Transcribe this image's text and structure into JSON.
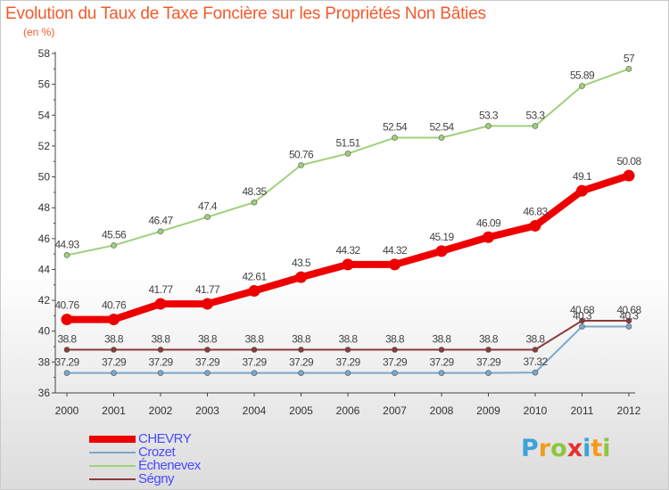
{
  "header": {
    "title": "Evolution du Taux de Taxe Foncière sur les Propriétés Non Bâties",
    "subtitle": "(en %)"
  },
  "logo": {
    "text": "Proxiti",
    "letters": [
      "P",
      "r",
      "o",
      "x",
      "i",
      "t",
      "i"
    ],
    "colors": [
      "#3da3d8",
      "#f59b1c",
      "#8cc63e",
      "#e8312f",
      "#3da3d8",
      "#f59b1c",
      "#8cc63e"
    ]
  },
  "chart_data": {
    "type": "line",
    "title": "Evolution du Taux de Taxe Foncière sur les Propriétés Non Bâties",
    "ylabel": "(en %)",
    "xlabel": "",
    "x": [
      "2000",
      "2001",
      "2002",
      "2003",
      "2004",
      "2005",
      "2006",
      "2007",
      "2008",
      "2009",
      "2010",
      "2011",
      "2012"
    ],
    "ylim": [
      36,
      58
    ],
    "yticks": [
      36,
      38,
      40,
      42,
      44,
      46,
      48,
      50,
      52,
      54,
      56,
      58
    ],
    "grid": false,
    "legend_position": "bottom-left",
    "series": [
      {
        "name": "CHEVRY",
        "color": "#ee0000",
        "width": 8,
        "values": [
          40.76,
          40.76,
          41.77,
          41.77,
          42.61,
          43.5,
          44.32,
          44.32,
          45.19,
          46.09,
          46.83,
          49.1,
          50.08
        ],
        "labels": [
          "40.76",
          "40.76",
          "41.77",
          "41.77",
          "42.61",
          "43.5",
          "44.32",
          "44.32",
          "45.19",
          "46.09",
          "46.83",
          "49.1",
          "50.08"
        ]
      },
      {
        "name": "Crozet",
        "color": "#7aa7cc",
        "width": 2,
        "values": [
          37.29,
          37.29,
          37.29,
          37.29,
          37.29,
          37.29,
          37.29,
          37.29,
          37.29,
          37.29,
          37.32,
          40.3,
          40.3
        ],
        "labels": [
          "37.29",
          "37.29",
          "37.29",
          "37.29",
          "37.29",
          "37.29",
          "37.29",
          "37.29",
          "37.29",
          "37.29",
          "37.32",
          "40.3",
          "40.3"
        ]
      },
      {
        "name": "Échenevex",
        "color": "#9fd07a",
        "width": 2,
        "values": [
          44.93,
          45.56,
          46.47,
          47.4,
          48.35,
          50.76,
          51.51,
          52.54,
          52.54,
          53.3,
          53.3,
          55.89,
          57
        ],
        "labels": [
          "44.93",
          "45.56",
          "46.47",
          "47.4",
          "48.35",
          "50.76",
          "51.51",
          "52.54",
          "52.54",
          "53.3",
          "53.3",
          "55.89",
          "57"
        ]
      },
      {
        "name": "Ségny",
        "color": "#8b3a3a",
        "width": 2,
        "values": [
          38.8,
          38.8,
          38.8,
          38.8,
          38.8,
          38.8,
          38.8,
          38.8,
          38.8,
          38.8,
          38.8,
          40.68,
          40.68
        ],
        "labels": [
          "38.8",
          "38.8",
          "38.8",
          "38.8",
          "38.8",
          "38.8",
          "38.8",
          "38.8",
          "38.8",
          "38.8",
          "38.8",
          "40.68",
          "40.68"
        ]
      }
    ]
  }
}
